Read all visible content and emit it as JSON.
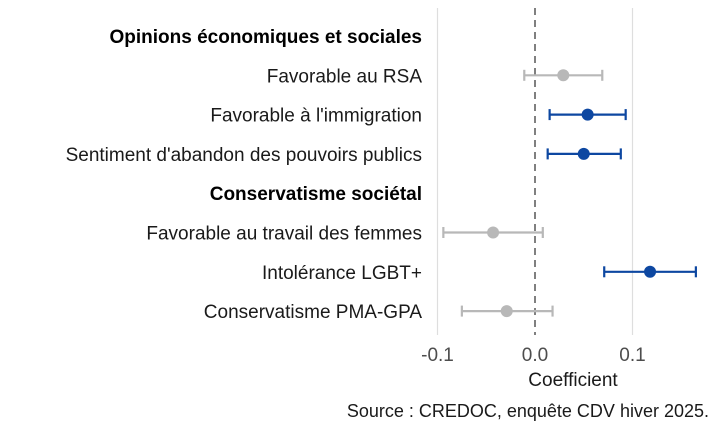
{
  "chart_data": {
    "type": "scatter",
    "subtype": "coefficient-plot",
    "xlabel": "Coefficient",
    "xlim": [
      -0.11,
      0.17
    ],
    "xticks": [
      -0.1,
      0.0,
      0.1
    ],
    "xtick_labels": [
      "-0.1",
      "0.0",
      "0.1"
    ],
    "reference_line": 0,
    "grid": "vertical-major",
    "rows": [
      {
        "label": "Opinions économiques et sociales",
        "header": true
      },
      {
        "label": "Favorable au RSA",
        "estimate": 0.029,
        "ci_low": -0.011,
        "ci_high": 0.069,
        "significant": false
      },
      {
        "label": "Favorable à l'immigration",
        "estimate": 0.054,
        "ci_low": 0.015,
        "ci_high": 0.093,
        "significant": true
      },
      {
        "label": "Sentiment d'abandon des pouvoirs publics",
        "estimate": 0.05,
        "ci_low": 0.013,
        "ci_high": 0.088,
        "significant": true
      },
      {
        "label": "Conservatisme sociétal",
        "header": true
      },
      {
        "label": "Favorable au travail des femmes",
        "estimate": -0.043,
        "ci_low": -0.094,
        "ci_high": 0.008,
        "significant": false
      },
      {
        "label": "Intolérance LGBT+",
        "estimate": 0.118,
        "ci_low": 0.071,
        "ci_high": 0.165,
        "significant": true
      },
      {
        "label": "Conservatisme PMA-GPA",
        "estimate": -0.029,
        "ci_low": -0.075,
        "ci_high": 0.018,
        "significant": false
      }
    ],
    "colors": {
      "significant": "#0d47a1",
      "not_significant": "#b8b8b8",
      "reference_line": "#808080",
      "grid": "#dedede"
    }
  },
  "caption": "Source : CREDOC, enquête CDV hiver 2025."
}
